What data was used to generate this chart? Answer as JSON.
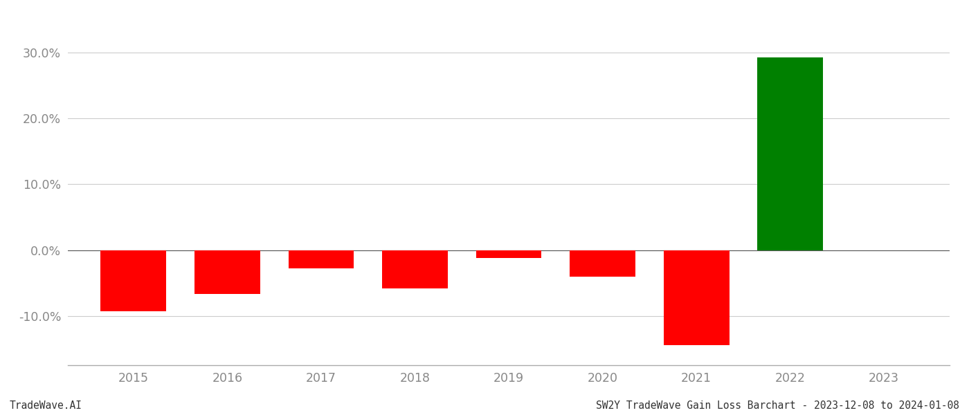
{
  "years": [
    2015,
    2016,
    2017,
    2018,
    2019,
    2020,
    2021,
    2022,
    2023
  ],
  "bar_centers": [
    2015.0,
    2016.0,
    2017.0,
    2018.0,
    2019.0,
    2020.0,
    2021.0,
    2022.0,
    2023.0
  ],
  "values": [
    -0.093,
    -0.067,
    -0.028,
    -0.058,
    -0.012,
    -0.04,
    -0.145,
    0.293,
    0.0
  ],
  "colors": [
    "#ff0000",
    "#ff0000",
    "#ff0000",
    "#ff0000",
    "#ff0000",
    "#ff0000",
    "#ff0000",
    "#008000",
    "#ff0000"
  ],
  "bar_width": 0.7,
  "xlim": [
    2014.3,
    2023.7
  ],
  "ylim": [
    -0.175,
    0.355
  ],
  "yticks": [
    -0.1,
    0.0,
    0.1,
    0.2,
    0.3
  ],
  "ytick_labels": [
    "-10.0%",
    "0.0%",
    "10.0%",
    "20.0%",
    "30.0%"
  ],
  "background_color": "#ffffff",
  "grid_color": "#cccccc",
  "text_color": "#888888",
  "footer_left": "TradeWave.AI",
  "footer_right": "SW2Y TradeWave Gain Loss Barchart - 2023-12-08 to 2024-01-08",
  "footer_fontsize": 10.5,
  "tick_fontsize": 12.5,
  "figsize": [
    14.0,
    6.0
  ],
  "dpi": 100
}
